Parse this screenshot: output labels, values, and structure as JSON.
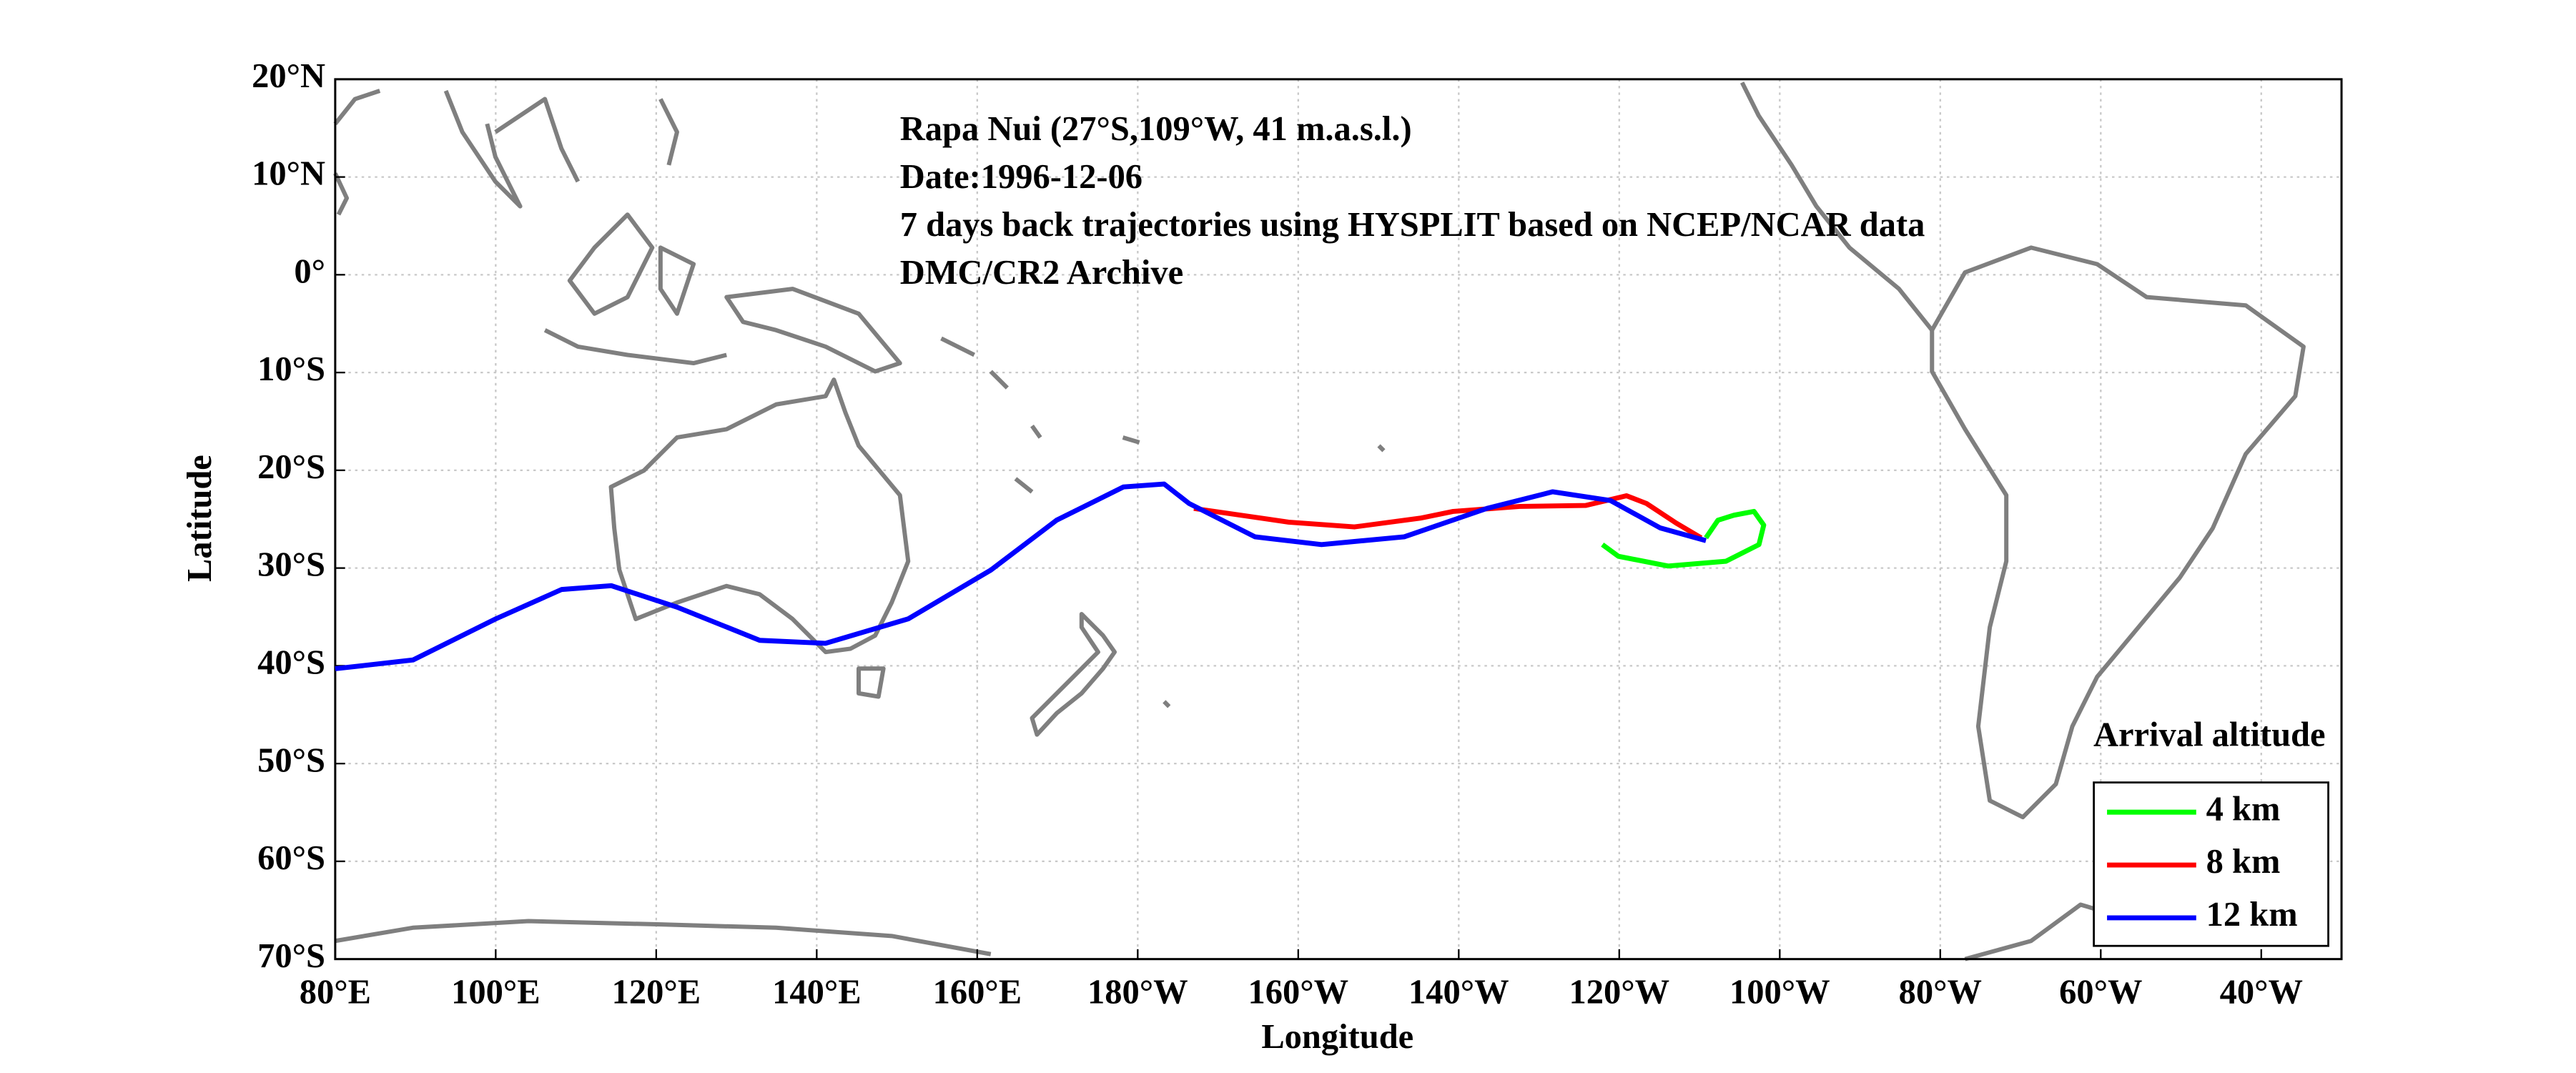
{
  "chart_data": {
    "type": "line",
    "annotations": [
      "Rapa Nui (27°S,109°W, 41 m.a.s.l.)",
      "Date:1996-12-06",
      "7 days back trajectories using HYSPLIT based on NCEP/NCAR data",
      "DMC/CR2 Archive"
    ],
    "xlabel": "Longitude",
    "ylabel": "Latitude",
    "legend_title": "Arrival altitude",
    "legend": "lower right",
    "grid": true,
    "xlim": [
      80,
      330
    ],
    "ylim": [
      -70,
      20
    ],
    "xticks": [
      {
        "value": 80,
        "label": "80°E"
      },
      {
        "value": 100,
        "label": "100°E"
      },
      {
        "value": 120,
        "label": "120°E"
      },
      {
        "value": 140,
        "label": "140°E"
      },
      {
        "value": 160,
        "label": "160°E"
      },
      {
        "value": 180,
        "label": "180°W"
      },
      {
        "value": 200,
        "label": "160°W"
      },
      {
        "value": 220,
        "label": "140°W"
      },
      {
        "value": 240,
        "label": "120°W"
      },
      {
        "value": 260,
        "label": "100°W"
      },
      {
        "value": 280,
        "label": "80°W"
      },
      {
        "value": 300,
        "label": "60°W"
      },
      {
        "value": 320,
        "label": "40°W"
      }
    ],
    "yticks": [
      {
        "value": 20,
        "label": "20°N"
      },
      {
        "value": 10,
        "label": "10°N"
      },
      {
        "value": 0,
        "label": "0°"
      },
      {
        "value": -10,
        "label": "10°S"
      },
      {
        "value": -20,
        "label": "20°S"
      },
      {
        "value": -30,
        "label": "30°S"
      },
      {
        "value": -40,
        "label": "40°S"
      },
      {
        "value": -50,
        "label": "50°S"
      },
      {
        "value": -60,
        "label": "60°S"
      },
      {
        "value": -70,
        "label": "70°S"
      }
    ],
    "series": [
      {
        "name": "4 km",
        "color": "#00ff00",
        "x": [
          250.8,
          252.3,
          254.3,
          256.8,
          258,
          257.4,
          253.3,
          246.1,
          239.9,
          237.9
        ],
        "values": [
          -26.9,
          -25.1,
          -24.6,
          -24.2,
          -25.6,
          -27.6,
          -29.3,
          -29.8,
          -28.8,
          -27.6
        ]
      },
      {
        "name": "8 km",
        "color": "#ff0000",
        "x": [
          250.2,
          247.1,
          243.4,
          240.9,
          235.8,
          227.6,
          219.3,
          215.2,
          207,
          198.8,
          187
        ],
        "values": [
          -26.9,
          -25.4,
          -23.4,
          -22.6,
          -23.6,
          -23.7,
          -24.2,
          -24.9,
          -25.8,
          -25.3,
          -23.9
        ]
      },
      {
        "name": "12 km",
        "color": "#0000ff",
        "x": [
          250.8,
          245.1,
          238.9,
          231.7,
          223.5,
          213.2,
          202.9,
          194.6,
          186.4,
          183.3,
          178.2,
          169.9,
          161.7,
          151.4,
          141.1,
          132.9,
          122.6,
          114.4,
          108.2,
          100,
          89.7,
          80
        ],
        "values": [
          -27.2,
          -25.9,
          -23.1,
          -22.2,
          -23.9,
          -26.8,
          -27.6,
          -26.8,
          -23.4,
          -21.4,
          -21.7,
          -25.1,
          -30.2,
          -35.2,
          -37.7,
          -37.4,
          -34,
          -31.8,
          -32.2,
          -35.2,
          -39.4,
          -40.3
        ]
      }
    ]
  }
}
